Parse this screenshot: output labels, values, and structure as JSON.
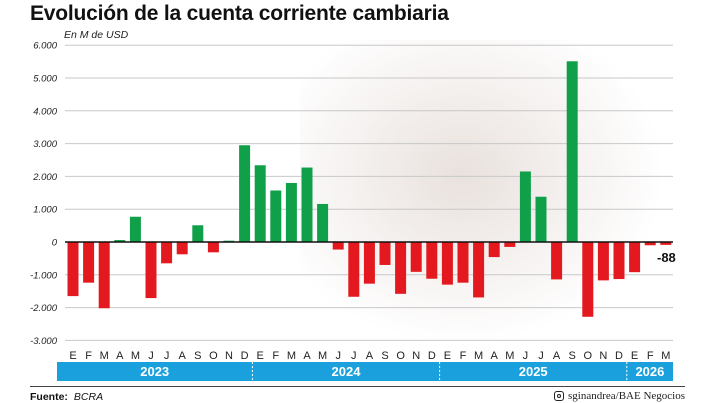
{
  "title": "Evolución de la cuenta corriente cambiaria",
  "unit_label": "En M de USD",
  "footer": {
    "source_label": "Fuente:",
    "source_value": "BCRA",
    "credit": "sginandrea/BAE Negocios",
    "credit_icon": "instagram-icon"
  },
  "colors": {
    "positive": "#10a04a",
    "negative": "#e3191f",
    "year_band": "#1aa0dc",
    "grid": "#c8c8c8"
  },
  "chart_data": {
    "type": "bar",
    "ylim": [
      -3000,
      6000
    ],
    "yticks": [
      6000,
      5000,
      4000,
      3000,
      2000,
      1000,
      0,
      -1000,
      -2000,
      -3000
    ],
    "ytick_labels": [
      "6.000",
      "5.000",
      "4.000",
      "3.000",
      "2.000",
      "1.000",
      "0",
      "-1.000",
      "-2.000",
      "-3.000"
    ],
    "grid": true,
    "categories": [
      "E",
      "F",
      "M",
      "A",
      "M",
      "J",
      "J",
      "A",
      "S",
      "O",
      "N",
      "D",
      "E",
      "F",
      "M",
      "A",
      "M",
      "J",
      "J",
      "A",
      "S",
      "O",
      "N",
      "D",
      "E",
      "F",
      "M",
      "A",
      "M",
      "J",
      "J",
      "A",
      "S",
      "O",
      "N",
      "D",
      "E",
      "F",
      "M"
    ],
    "years": [
      {
        "label": "2023",
        "count": 12
      },
      {
        "label": "2024",
        "count": 12
      },
      {
        "label": "2025",
        "count": 12
      },
      {
        "label": "2026",
        "count": 3
      }
    ],
    "values": [
      -1650,
      -1240,
      -2020,
      60,
      770,
      -1710,
      -650,
      -375,
      510,
      -315,
      40,
      2950,
      2340,
      1570,
      1800,
      2270,
      1160,
      -230,
      -1670,
      -1270,
      -700,
      -1580,
      -910,
      -1120,
      -1300,
      -1240,
      -1690,
      -460,
      -150,
      2150,
      1380,
      -1140,
      5510,
      -2280,
      -1170,
      -1130,
      -920,
      -100,
      -88
    ],
    "annotations": [
      {
        "category_index": 38,
        "text": "-88"
      }
    ]
  }
}
